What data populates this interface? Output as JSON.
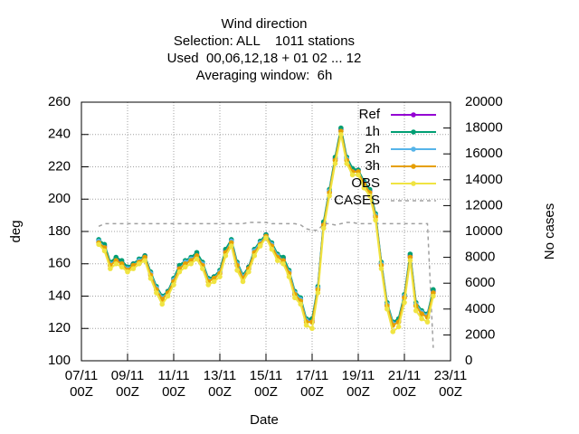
{
  "chart_data": {
    "type": "line",
    "title": "Wind direction",
    "subtitle": [
      "Selection: ALL    1011 stations",
      "Used  00,06,12,18 + 01 02 ... 12",
      "Averaging window:  6h"
    ],
    "xlabel": "Date",
    "ylabel": "deg",
    "y2label": "No cases",
    "xlim": [
      "07/11 00Z",
      "23/11 00Z"
    ],
    "xticks": [
      "07/11\n00Z",
      "09/11\n00Z",
      "11/11\n00Z",
      "13/11\n00Z",
      "15/11\n00Z",
      "17/11\n00Z",
      "19/11\n00Z",
      "21/11\n00Z",
      "23/11\n00Z"
    ],
    "ylim": [
      100,
      260
    ],
    "yticks": [
      100,
      120,
      140,
      160,
      180,
      200,
      220,
      240,
      260
    ],
    "y2lim": [
      0,
      20000
    ],
    "y2ticks": [
      0,
      2000,
      4000,
      6000,
      8000,
      10000,
      12000,
      14000,
      16000,
      18000,
      20000
    ],
    "grid": true,
    "legend": "top right",
    "x": [
      "07/11 18Z",
      "08/11 00Z",
      "08/11 06Z",
      "08/11 12Z",
      "08/11 18Z",
      "09/11 00Z",
      "09/11 06Z",
      "09/11 12Z",
      "09/11 18Z",
      "10/11 00Z",
      "10/11 06Z",
      "10/11 12Z",
      "10/11 18Z",
      "11/11 00Z",
      "11/11 06Z",
      "11/11 12Z",
      "11/11 18Z",
      "12/11 00Z",
      "12/11 06Z",
      "12/11 12Z",
      "12/11 18Z",
      "13/11 00Z",
      "13/11 06Z",
      "13/11 12Z",
      "13/11 18Z",
      "14/11 00Z",
      "14/11 06Z",
      "14/11 12Z",
      "14/11 18Z",
      "15/11 00Z",
      "15/11 06Z",
      "15/11 12Z",
      "15/11 18Z",
      "16/11 00Z",
      "16/11 06Z",
      "16/11 12Z",
      "16/11 18Z",
      "17/11 00Z",
      "17/11 06Z",
      "17/11 12Z",
      "17/11 18Z",
      "18/11 00Z",
      "18/11 06Z",
      "18/11 12Z",
      "18/11 18Z",
      "19/11 00Z",
      "19/11 06Z",
      "19/11 12Z",
      "19/11 18Z",
      "20/11 00Z",
      "20/11 06Z",
      "20/11 12Z",
      "20/11 18Z",
      "21/11 00Z",
      "21/11 06Z",
      "21/11 12Z",
      "21/11 18Z",
      "22/11 00Z",
      "22/11 06Z"
    ],
    "series": [
      {
        "name": "Ref",
        "color": "#9400d3",
        "values": [
          174,
          171,
          160,
          163,
          161,
          157,
          160,
          162,
          165,
          154,
          145,
          139,
          143,
          150,
          158,
          161,
          163,
          166,
          160,
          150,
          152,
          155,
          168,
          174,
          160,
          152,
          158,
          168,
          173,
          178,
          172,
          165,
          163,
          155,
          142,
          138,
          125,
          125,
          145,
          185,
          205,
          225,
          243,
          225,
          218,
          218,
          210,
          205,
          190,
          160,
          135,
          123,
          125,
          140,
          165,
          135,
          130,
          128,
          143
        ]
      },
      {
        "name": "1h",
        "color": "#009e73",
        "values": [
          175,
          172,
          161,
          164,
          162,
          158,
          160,
          163,
          165,
          155,
          146,
          140,
          143,
          151,
          159,
          162,
          164,
          167,
          161,
          151,
          152,
          156,
          169,
          175,
          161,
          153,
          158,
          169,
          174,
          178,
          173,
          166,
          164,
          156,
          143,
          139,
          126,
          126,
          146,
          186,
          206,
          226,
          244,
          226,
          219,
          218,
          211,
          206,
          191,
          161,
          136,
          124,
          126,
          141,
          166,
          136,
          131,
          129,
          144
        ]
      },
      {
        "name": "2h",
        "color": "#56b4e9",
        "values": [
          174,
          170,
          160,
          162,
          160,
          157,
          159,
          162,
          164,
          154,
          145,
          139,
          142,
          150,
          157,
          161,
          163,
          165,
          160,
          150,
          151,
          155,
          167,
          174,
          160,
          152,
          157,
          168,
          173,
          177,
          172,
          165,
          162,
          155,
          142,
          138,
          125,
          124,
          145,
          184,
          205,
          224,
          242,
          225,
          217,
          217,
          210,
          204,
          190,
          160,
          135,
          123,
          124,
          140,
          164,
          135,
          130,
          128,
          142
        ]
      },
      {
        "name": "3h",
        "color": "#e69f00",
        "values": [
          173,
          170,
          159,
          162,
          160,
          156,
          159,
          161,
          164,
          153,
          144,
          138,
          142,
          149,
          157,
          160,
          162,
          165,
          159,
          149,
          151,
          154,
          167,
          173,
          159,
          151,
          157,
          167,
          172,
          177,
          171,
          164,
          162,
          154,
          141,
          137,
          124,
          124,
          144,
          184,
          204,
          224,
          242,
          224,
          217,
          217,
          209,
          204,
          189,
          159,
          134,
          122,
          124,
          139,
          164,
          134,
          129,
          127,
          142
        ]
      },
      {
        "name": "OBS",
        "color": "#f0e442",
        "values": [
          172,
          168,
          157,
          160,
          158,
          155,
          157,
          160,
          162,
          151,
          142,
          135,
          140,
          147,
          155,
          158,
          160,
          163,
          157,
          147,
          149,
          152,
          165,
          171,
          156,
          149,
          155,
          165,
          171,
          176,
          169,
          162,
          160,
          152,
          139,
          135,
          122,
          120,
          142,
          182,
          202,
          222,
          240,
          222,
          215,
          215,
          207,
          202,
          187,
          157,
          132,
          118,
          121,
          136,
          162,
          131,
          126,
          124,
          140
        ]
      },
      {
        "name": "CASES",
        "color": "#a0a0a0",
        "axis": "y2",
        "dashed": true,
        "values": [
          10400,
          10600,
          10600,
          10600,
          10600,
          10600,
          10600,
          10600,
          10600,
          10600,
          10600,
          10600,
          10600,
          10600,
          10600,
          10600,
          10600,
          10600,
          10600,
          10600,
          10600,
          10600,
          10600,
          10600,
          10600,
          10600,
          10700,
          10700,
          10700,
          10700,
          10600,
          10600,
          10600,
          10600,
          10600,
          10500,
          10200,
          10100,
          10100,
          10600,
          10600,
          10500,
          10600,
          10700,
          10700,
          10600,
          10600,
          10600,
          10600,
          10600,
          10600,
          10600,
          10600,
          10600,
          10600,
          10600,
          10600,
          10600,
          1000
        ]
      }
    ]
  }
}
